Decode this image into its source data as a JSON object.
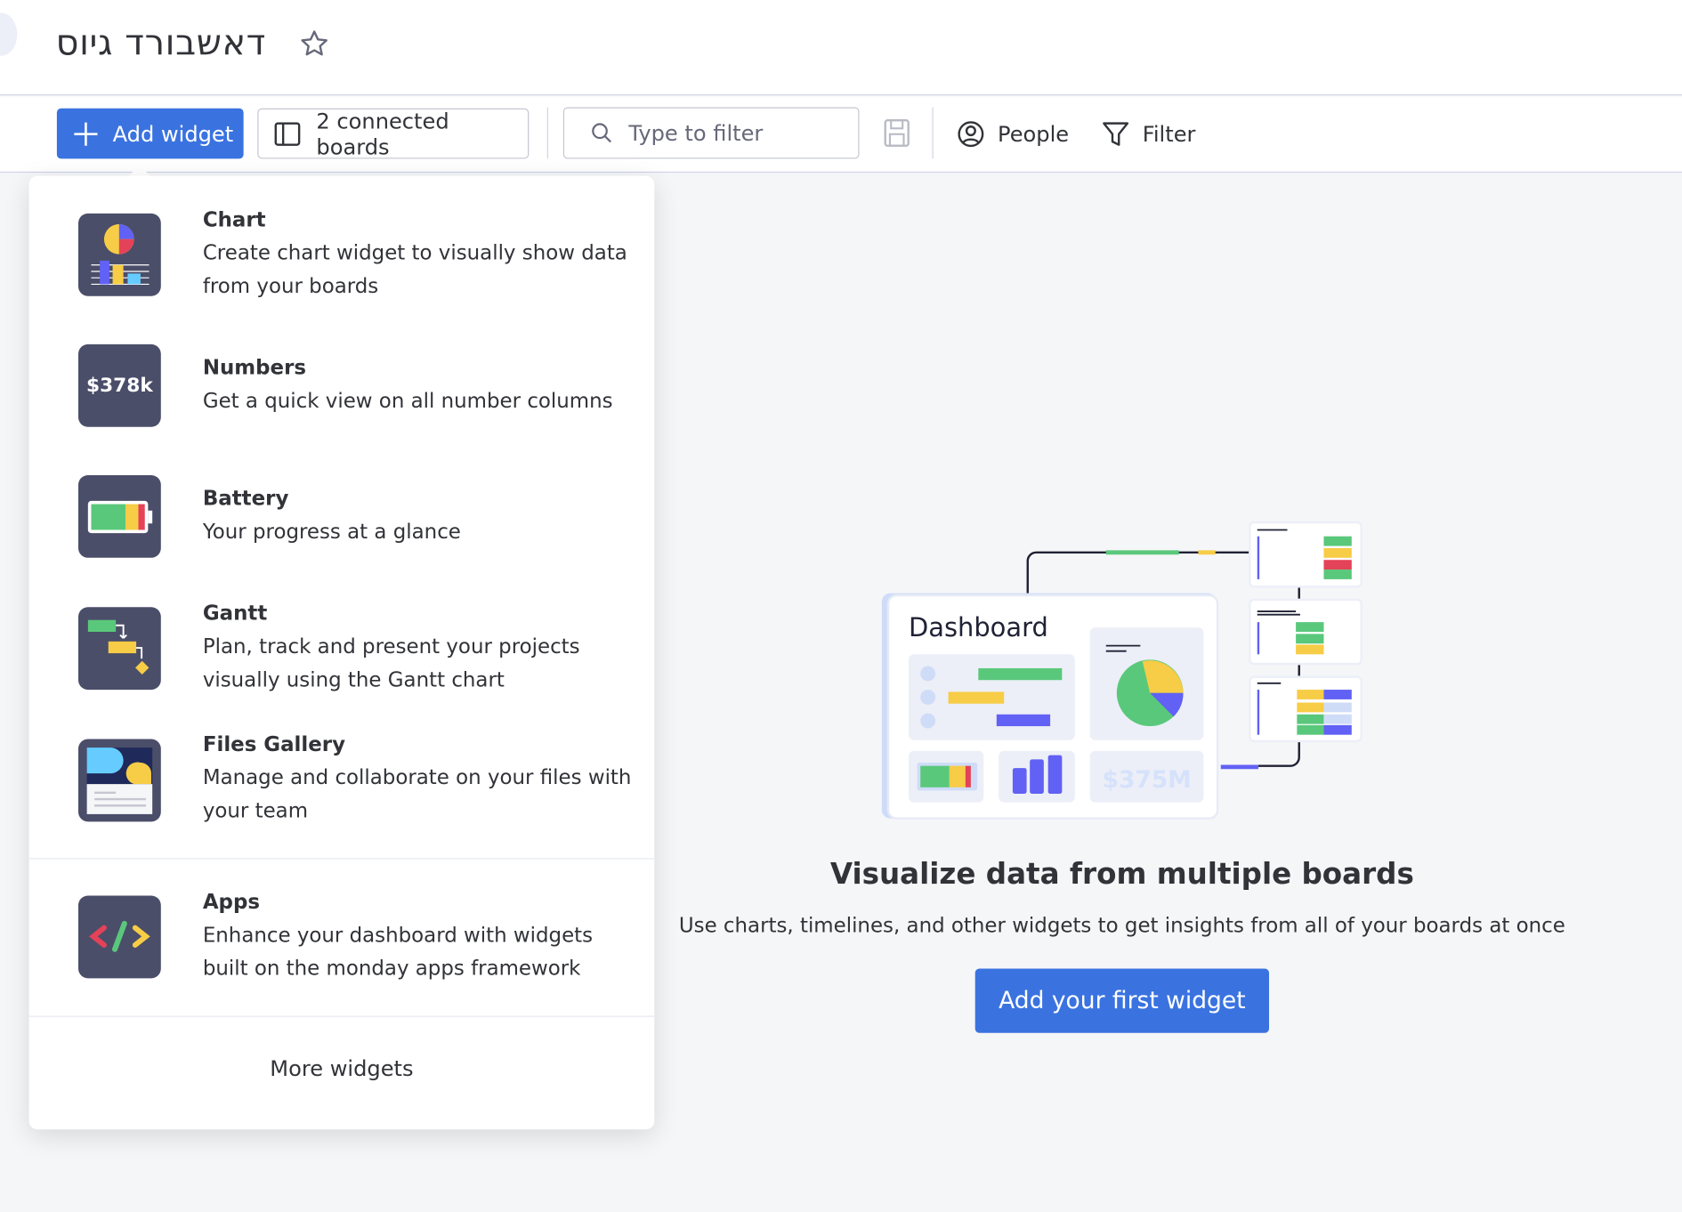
{
  "header": {
    "title": "דאשבורד גיוס"
  },
  "toolbar": {
    "add_widget_label": "Add widget",
    "connected_boards_label": "2 connected boards",
    "search_placeholder": "Type to filter",
    "people_label": "People",
    "filter_label": "Filter"
  },
  "widget_menu": {
    "items": [
      {
        "title": "Chart",
        "description": "Create chart widget to visually show data from your boards",
        "icon": "chart-icon"
      },
      {
        "title": "Numbers",
        "description": "Get a quick view on all number columns",
        "icon": "numbers-icon",
        "icon_text": "$378k"
      },
      {
        "title": "Battery",
        "description": "Your progress at a glance",
        "icon": "battery-icon"
      },
      {
        "title": "Gantt",
        "description": "Plan, track and present your projects visually using the Gantt chart",
        "icon": "gantt-icon"
      },
      {
        "title": "Files Gallery",
        "description": "Manage and collaborate on your files with your team",
        "icon": "files-gallery-icon"
      },
      {
        "title": "Apps",
        "description": "Enhance your dashboard with widgets built on the monday apps framework",
        "icon": "apps-code-icon"
      }
    ],
    "more_label": "More widgets"
  },
  "empty_state": {
    "illustration_title": "Dashboard",
    "illustration_number": "$375M",
    "headline": "Visualize data from multiple boards",
    "subtext": "Use charts, timelines, and other widgets to get insights from all of your boards at once",
    "cta_label": "Add your first widget"
  },
  "colors": {
    "primary": "#3a73e0",
    "green": "#5ac87b",
    "yellow": "#f7cc46",
    "purple": "#6161f5",
    "red": "#e44258",
    "icon_bg": "#4b4e69"
  }
}
